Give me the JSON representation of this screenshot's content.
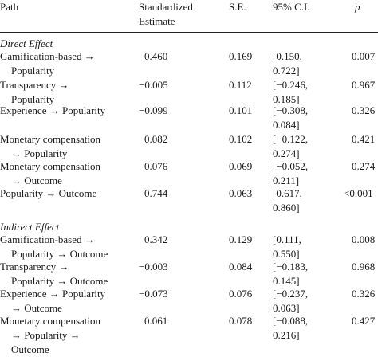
{
  "header": {
    "path": "Path",
    "estimate_line1": "Standardized",
    "estimate_line2": "Estimate",
    "se": "S.E.",
    "ci": "95% C.I.",
    "p": "p"
  },
  "sections": [
    {
      "title": "Direct Effect",
      "rows": [
        {
          "path": [
            "Gamification-based →",
            "Popularity"
          ],
          "estimate": "0.460",
          "se": "0.169",
          "ci": [
            "[0.150,",
            "0.722]"
          ],
          "p": "0.007"
        },
        {
          "path": [
            "Transparency →",
            "Popularity"
          ],
          "estimate": "−0.005",
          "se": "0.112",
          "ci": [
            "[−0.246,",
            "0.185]"
          ],
          "p": "0.967"
        },
        {
          "path": [
            "Experience → Popularity"
          ],
          "estimate": "−0.099",
          "se": "0.101",
          "ci": [
            "[−0.308,",
            "0.084]"
          ],
          "p": "0.326"
        },
        {
          "path": [
            "Monetary compensation",
            "→ Popularity"
          ],
          "estimate": "0.082",
          "se": "0.102",
          "ci": [
            "[−0.122,",
            "0.274]"
          ],
          "p": "0.421"
        },
        {
          "path": [
            "Monetary compensation",
            "→ Outcome"
          ],
          "estimate": "0.076",
          "se": "0.069",
          "ci": [
            "[−0.052,",
            "0.211]"
          ],
          "p": "0.274"
        },
        {
          "path": [
            "Popularity → Outcome"
          ],
          "estimate": "0.744",
          "se": "0.063",
          "ci": [
            "[0.617,",
            "0.860]"
          ],
          "p": "<0.001"
        }
      ]
    },
    {
      "title": "Indirect Effect",
      "rows": [
        {
          "path": [
            "Gamification-based →",
            "Popularity → Outcome"
          ],
          "estimate": "0.342",
          "se": "0.129",
          "ci": [
            "[0.111,",
            "0.550]"
          ],
          "p": "0.008"
        },
        {
          "path": [
            "Transparency →",
            "Popularity → Outcome"
          ],
          "estimate": "−0.003",
          "se": "0.084",
          "ci": [
            "[−0.183,",
            "0.145]"
          ],
          "p": "0.968"
        },
        {
          "path": [
            "Experience → Popularity",
            "→ Outcome"
          ],
          "estimate": "−0.073",
          "se": "0.076",
          "ci": [
            "[−0.237,",
            "0.063]"
          ],
          "p": "0.326"
        },
        {
          "path": [
            "Monetary compensation",
            "→ Popularity →",
            "Outcome"
          ],
          "estimate": "0.061",
          "se": "0.078",
          "ci": [
            "[−0.088,",
            "0.216]"
          ],
          "p": "0.427"
        }
      ]
    }
  ]
}
